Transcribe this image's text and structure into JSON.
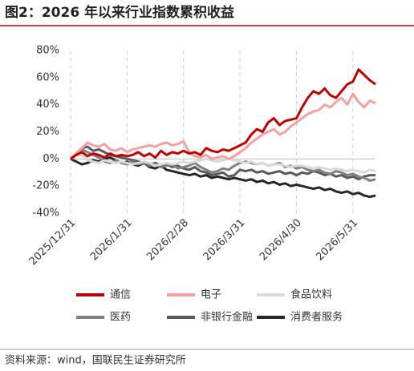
{
  "chart_data": {
    "type": "line",
    "title": "图2：2026 年以来行业指数累积收益",
    "source": "资料来源：wind，国联民生证券研究所",
    "categories": [
      "2025/12/31",
      null,
      null,
      null,
      null,
      null,
      null,
      null,
      null,
      null,
      "2026/1/31",
      null,
      null,
      null,
      null,
      null,
      null,
      null,
      null,
      null,
      "2026/2/28",
      null,
      null,
      null,
      null,
      null,
      null,
      null,
      null,
      null,
      "2026/3/31",
      null,
      null,
      null,
      null,
      null,
      null,
      null,
      null,
      null,
      "2026/4/30",
      null,
      null,
      null,
      null,
      null,
      null,
      null,
      null,
      null,
      "2026/5/31",
      null,
      null,
      null,
      null
    ],
    "ylim": [
      -40,
      80
    ],
    "yticks": [
      {
        "value": -40,
        "label": "-40%"
      },
      {
        "value": -20,
        "label": "-20%"
      },
      {
        "value": 0,
        "label": "0%"
      },
      {
        "value": 20,
        "label": "20%"
      },
      {
        "value": 40,
        "label": "40%"
      },
      {
        "value": 60,
        "label": "60%"
      },
      {
        "value": 80,
        "label": "80%"
      }
    ],
    "series": [
      {
        "name": "通信",
        "color": "#c00000",
        "values": [
          0,
          3,
          5,
          2,
          4,
          3,
          1,
          4,
          2,
          3,
          2,
          3,
          5,
          2,
          4,
          1,
          6,
          3,
          5,
          4,
          6,
          4,
          5,
          3,
          8,
          6,
          5,
          7,
          6,
          8,
          10,
          12,
          18,
          22,
          20,
          27,
          30,
          25,
          28,
          29,
          30,
          38,
          45,
          50,
          48,
          52,
          47,
          45,
          50,
          55,
          57,
          66,
          62,
          58,
          55
        ]
      },
      {
        "name": "电子",
        "color": "#f4a0a0",
        "values": [
          0,
          4,
          8,
          12,
          10,
          9,
          11,
          7,
          6,
          8,
          5,
          7,
          8,
          9,
          10,
          9,
          11,
          12,
          10,
          11,
          13,
          5,
          2,
          1,
          3,
          0,
          1,
          2,
          0,
          2,
          5,
          8,
          12,
          15,
          18,
          20,
          22,
          18,
          20,
          24,
          27,
          30,
          33,
          35,
          36,
          40,
          38,
          42,
          45,
          40,
          48,
          42,
          38,
          43,
          41
        ]
      },
      {
        "name": "食品饮料",
        "color": "#d9d9d9",
        "values": [
          0,
          2,
          3,
          -1,
          -2,
          -3,
          -1,
          -2,
          -3,
          -2,
          -3,
          -4,
          -3,
          -2,
          -3,
          -5,
          -4,
          -3,
          -4,
          -3,
          -2,
          -3,
          -2,
          -1,
          0,
          -1,
          -2,
          -1,
          0,
          -1,
          -2,
          -3,
          -2,
          -4,
          -3,
          -5,
          -4,
          -4,
          -5,
          -6,
          -5,
          -5,
          -6,
          -7,
          -6,
          -7,
          -8,
          -7,
          -8,
          -9,
          -8,
          -9,
          -10,
          -8,
          -9
        ]
      },
      {
        "name": "医药",
        "color": "#808080",
        "values": [
          0,
          3,
          7,
          5,
          3,
          1,
          -2,
          -3,
          -1,
          -3,
          -4,
          -2,
          -4,
          -3,
          -5,
          -4,
          -6,
          -5,
          -4,
          -7,
          -6,
          -5,
          -3,
          -6,
          -8,
          -10,
          -9,
          -7,
          -8,
          -5,
          -3,
          -2,
          -3,
          -4,
          -3,
          -5,
          -4,
          -3,
          -6,
          -5,
          -7,
          -6,
          -8,
          -9,
          -8,
          -10,
          -11,
          -9,
          -10,
          -12,
          -11,
          -13,
          -14,
          -16,
          -15
        ]
      },
      {
        "name": "非银行金融",
        "color": "#595959",
        "values": [
          0,
          4,
          8,
          9,
          6,
          7,
          5,
          3,
          2,
          1,
          0,
          -1,
          -2,
          -3,
          -4,
          -3,
          -5,
          -4,
          -6,
          -5,
          -7,
          -8,
          -6,
          -9,
          -10,
          -12,
          -11,
          -10,
          -13,
          -12,
          -8,
          -9,
          -8,
          -10,
          -9,
          -11,
          -10,
          -9,
          -11,
          -10,
          -12,
          -10,
          -11,
          -9,
          -10,
          -12,
          -11,
          -13,
          -12,
          -14,
          -13,
          -15,
          -13,
          -12,
          -12
        ]
      },
      {
        "name": "消费者服务",
        "color": "#262626",
        "values": [
          0,
          -2,
          -4,
          -3,
          -1,
          -2,
          0,
          1,
          -1,
          -3,
          -2,
          -4,
          -5,
          -3,
          -6,
          -7,
          -5,
          -8,
          -9,
          -10,
          -11,
          -12,
          -11,
          -13,
          -12,
          -14,
          -13,
          -14,
          -15,
          -14,
          -15,
          -16,
          -15,
          -17,
          -16,
          -18,
          -17,
          -19,
          -18,
          -20,
          -19,
          -20,
          -21,
          -22,
          -21,
          -23,
          -22,
          -24,
          -25,
          -24,
          -26,
          -25,
          -27,
          -28,
          -27
        ]
      }
    ]
  }
}
